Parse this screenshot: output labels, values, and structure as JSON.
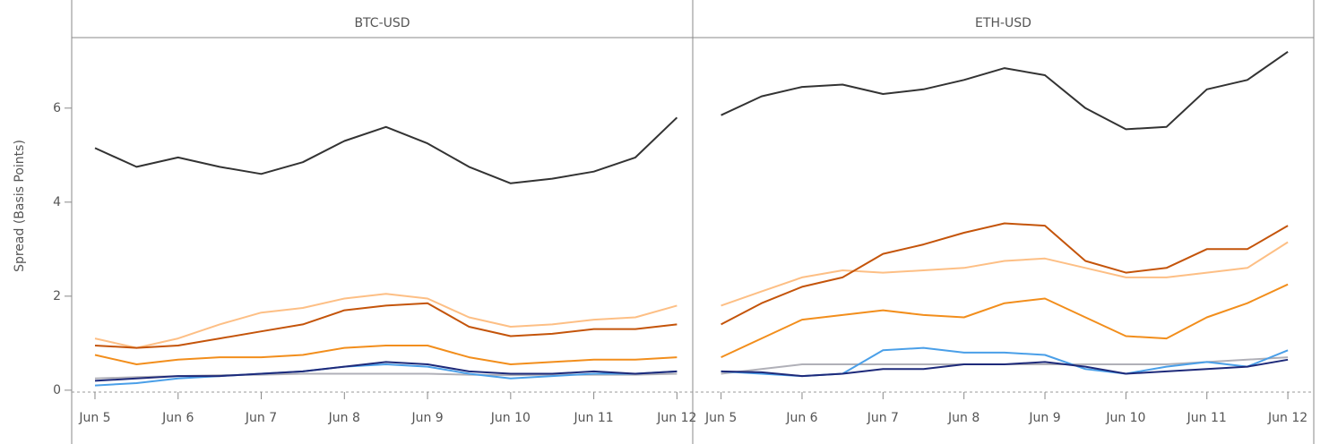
{
  "chart_data": [
    {
      "type": "line",
      "title": "BTC-USD",
      "ylabel": "Spread (Basis Points)",
      "x": [
        5,
        5.5,
        6,
        6.5,
        7,
        7.5,
        8,
        8.5,
        9,
        9.5,
        10,
        10.5,
        11,
        11.5,
        12
      ],
      "xlim": [
        4.72,
        12.19
      ],
      "xticks": [
        {
          "value": 5,
          "label": "Jun 5"
        },
        {
          "value": 6,
          "label": "Jun 6"
        },
        {
          "value": 7,
          "label": "Jun 7"
        },
        {
          "value": 8,
          "label": "Jun 8"
        },
        {
          "value": 9,
          "label": "Jun 9"
        },
        {
          "value": 10,
          "label": "Jun 10"
        },
        {
          "value": 11,
          "label": "Jun 11"
        },
        {
          "value": 12,
          "label": "Jun 12"
        }
      ],
      "ylim": [
        -0.04,
        7.5
      ],
      "yticks": [
        0,
        2,
        4,
        6
      ],
      "series": [
        {
          "color": "#333333",
          "values": [
            5.15,
            4.75,
            4.95,
            4.75,
            4.6,
            4.85,
            5.3,
            5.6,
            5.25,
            4.75,
            4.4,
            4.5,
            4.65,
            4.95,
            5.8
          ]
        },
        {
          "color": "#fdbf85",
          "values": [
            1.1,
            0.9,
            1.1,
            1.4,
            1.65,
            1.75,
            1.95,
            2.05,
            1.95,
            1.55,
            1.35,
            1.4,
            1.5,
            1.55,
            1.8
          ]
        },
        {
          "color": "#c4540a",
          "values": [
            0.95,
            0.9,
            0.95,
            1.1,
            1.25,
            1.4,
            1.7,
            1.8,
            1.85,
            1.35,
            1.15,
            1.2,
            1.3,
            1.3,
            1.4
          ]
        },
        {
          "color": "#f28e1c",
          "values": [
            0.75,
            0.55,
            0.65,
            0.7,
            0.7,
            0.75,
            0.9,
            0.95,
            0.95,
            0.7,
            0.55,
            0.6,
            0.65,
            0.65,
            0.7
          ]
        },
        {
          "color": "#b0b0b8",
          "values": [
            0.25,
            0.28,
            0.3,
            0.32,
            0.33,
            0.35,
            0.35,
            0.35,
            0.35,
            0.33,
            0.32,
            0.33,
            0.33,
            0.33,
            0.35
          ]
        },
        {
          "color": "#4a9fe8",
          "values": [
            0.1,
            0.15,
            0.25,
            0.3,
            0.35,
            0.4,
            0.5,
            0.55,
            0.5,
            0.35,
            0.25,
            0.3,
            0.35,
            0.35,
            0.4
          ]
        },
        {
          "color": "#1e2a7a",
          "values": [
            0.2,
            0.25,
            0.3,
            0.3,
            0.35,
            0.4,
            0.5,
            0.6,
            0.55,
            0.4,
            0.35,
            0.35,
            0.4,
            0.35,
            0.4
          ]
        }
      ]
    },
    {
      "type": "line",
      "title": "ETH-USD",
      "x": [
        5,
        5.5,
        6,
        6.5,
        7,
        7.5,
        8,
        8.5,
        9,
        9.5,
        10,
        10.5,
        11,
        11.5,
        12
      ],
      "xlim": [
        4.65,
        12.32
      ],
      "xticks": [
        {
          "value": 5,
          "label": "Jun 5"
        },
        {
          "value": 6,
          "label": "Jun 6"
        },
        {
          "value": 7,
          "label": "Jun 7"
        },
        {
          "value": 8,
          "label": "Jun 8"
        },
        {
          "value": 9,
          "label": "Jun 9"
        },
        {
          "value": 10,
          "label": "Jun 10"
        },
        {
          "value": 11,
          "label": "Jun 11"
        },
        {
          "value": 12,
          "label": "Jun 12"
        }
      ],
      "ylim": [
        -0.04,
        7.5
      ],
      "series": [
        {
          "color": "#333333",
          "values": [
            5.85,
            6.25,
            6.45,
            6.5,
            6.3,
            6.4,
            6.6,
            6.85,
            6.7,
            6.0,
            5.55,
            5.6,
            6.4,
            6.6,
            7.2
          ]
        },
        {
          "color": "#fdbf85",
          "values": [
            1.8,
            2.1,
            2.4,
            2.55,
            2.5,
            2.55,
            2.6,
            2.75,
            2.8,
            2.6,
            2.4,
            2.4,
            2.5,
            2.6,
            3.15
          ]
        },
        {
          "color": "#c4540a",
          "values": [
            1.4,
            1.85,
            2.2,
            2.4,
            2.9,
            3.1,
            3.35,
            3.55,
            3.5,
            2.75,
            2.5,
            2.6,
            3.0,
            3.0,
            3.5
          ]
        },
        {
          "color": "#f28e1c",
          "values": [
            0.7,
            1.1,
            1.5,
            1.6,
            1.7,
            1.6,
            1.55,
            1.85,
            1.95,
            1.55,
            1.15,
            1.1,
            1.55,
            1.85,
            2.25
          ]
        },
        {
          "color": "#b0b0b8",
          "values": [
            0.35,
            0.45,
            0.55,
            0.55,
            0.55,
            0.55,
            0.55,
            0.55,
            0.55,
            0.55,
            0.55,
            0.55,
            0.6,
            0.65,
            0.7
          ]
        },
        {
          "color": "#4a9fe8",
          "values": [
            0.4,
            0.35,
            0.3,
            0.35,
            0.85,
            0.9,
            0.8,
            0.8,
            0.75,
            0.45,
            0.35,
            0.5,
            0.6,
            0.5,
            0.85
          ]
        },
        {
          "color": "#1e2a7a",
          "values": [
            0.4,
            0.38,
            0.3,
            0.35,
            0.45,
            0.45,
            0.55,
            0.55,
            0.6,
            0.5,
            0.35,
            0.4,
            0.45,
            0.5,
            0.65
          ]
        }
      ]
    }
  ]
}
